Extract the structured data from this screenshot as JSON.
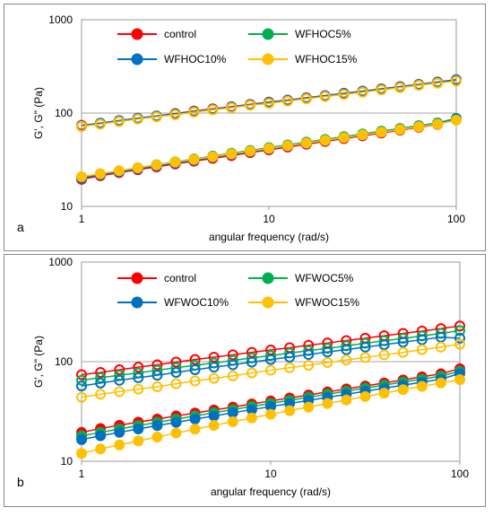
{
  "chart_data": [
    {
      "type": "scatter",
      "panel_label": "a",
      "xlabel": "angular frequency (rad/s)",
      "ylabel": "G', G\" (Pa)",
      "xscale": "log",
      "yscale": "log",
      "xlim": [
        1,
        100
      ],
      "ylim": [
        10,
        1000
      ],
      "xticks": [
        "1",
        "10",
        "100"
      ],
      "yticks": [
        "10",
        "100",
        "1000"
      ],
      "gridlines": "horizontal",
      "legend_position": "top",
      "x": [
        1,
        1.259,
        1.585,
        1.995,
        2.512,
        3.162,
        3.981,
        5.012,
        6.31,
        7.943,
        10,
        12.59,
        15.85,
        19.95,
        25.12,
        31.62,
        39.81,
        50.12,
        63.1,
        79.43,
        100
      ],
      "series": [
        {
          "name": "control",
          "color": "#ff0000",
          "G_prime": [
            74,
            78,
            83,
            88,
            93,
            99,
            105,
            111,
            117,
            124,
            131,
            138,
            146,
            154,
            163,
            172,
            182,
            192,
            203,
            215,
            228
          ],
          "G_double": [
            19.5,
            21.3,
            23.0,
            24.7,
            26.5,
            28.5,
            30.5,
            32.7,
            35.0,
            37.6,
            40.3,
            43.2,
            46.3,
            49.6,
            53.2,
            57.0,
            61.1,
            65.6,
            70.4,
            75.6,
            85
          ]
        },
        {
          "name": "WFHOC5%",
          "color": "#00b050",
          "G_prime": [
            72,
            77,
            82,
            87,
            92,
            97,
            103,
            109,
            115,
            122,
            129,
            136,
            144,
            152,
            161,
            170,
            180,
            190,
            201,
            213,
            225
          ],
          "G_double": [
            20.5,
            22.3,
            24.0,
            25.9,
            27.9,
            30.0,
            32.2,
            34.6,
            37.1,
            39.8,
            42.6,
            45.6,
            48.8,
            52.2,
            55.9,
            59.8,
            64.0,
            68.5,
            73.3,
            78.5,
            88
          ]
        },
        {
          "name": "WFHOC10%",
          "color": "#0070c0",
          "G_prime": [
            73,
            78,
            83,
            88,
            93,
            98,
            104,
            110,
            116,
            123,
            130,
            137,
            145,
            153,
            162,
            171,
            181,
            191,
            202,
            214,
            227
          ],
          "G_double": [
            20.0,
            21.8,
            23.5,
            25.3,
            27.2,
            29.2,
            31.3,
            33.6,
            36.0,
            38.6,
            41.4,
            44.3,
            47.5,
            50.8,
            54.4,
            58.2,
            62.4,
            66.8,
            71.6,
            76.7,
            86
          ]
        },
        {
          "name": "WFHOC15%",
          "color": "#ffc000",
          "G_prime": [
            72,
            76,
            81,
            86,
            91,
            96,
            102,
            108,
            114,
            121,
            127,
            134,
            142,
            150,
            158,
            167,
            177,
            187,
            198,
            209,
            220
          ],
          "G_double": [
            20.8,
            22.4,
            24.1,
            25.9,
            27.8,
            29.8,
            31.9,
            34.1,
            36.5,
            39.1,
            41.8,
            44.7,
            47.8,
            51.1,
            54.6,
            58.4,
            62.4,
            66.7,
            71.3,
            76.2,
            84
          ]
        }
      ]
    },
    {
      "type": "scatter",
      "panel_label": "b",
      "xlabel": "angular frequency (rad/s)",
      "ylabel": "G', G\" (Pa)",
      "xscale": "log",
      "yscale": "log",
      "xlim": [
        1,
        100
      ],
      "ylim": [
        10,
        1000
      ],
      "xticks": [
        "1",
        "10",
        "100"
      ],
      "yticks": [
        "10",
        "100",
        "1000"
      ],
      "gridlines": "horizontal",
      "legend_position": "top",
      "x": [
        1,
        1.259,
        1.585,
        1.995,
        2.512,
        3.162,
        3.981,
        5.012,
        6.31,
        7.943,
        10,
        12.59,
        15.85,
        19.95,
        25.12,
        31.62,
        39.81,
        50.12,
        63.1,
        79.43,
        100
      ],
      "series": [
        {
          "name": "control",
          "color": "#ff0000",
          "G_prime": [
            74,
            78,
            83,
            88,
            93,
            99,
            105,
            111,
            117,
            124,
            131,
            138,
            146,
            154,
            163,
            172,
            182,
            192,
            203,
            215,
            228
          ],
          "G_double": [
            19.5,
            21.3,
            23.0,
            24.7,
            26.5,
            28.5,
            30.5,
            32.7,
            35.0,
            37.6,
            40.3,
            43.2,
            46.3,
            49.6,
            53.2,
            57.0,
            61.1,
            65.6,
            70.4,
            75.6,
            85
          ]
        },
        {
          "name": "WFWOC5%",
          "color": "#00b050",
          "G_prime": [
            65,
            69,
            73,
            77,
            82,
            87,
            92,
            97,
            103,
            109,
            115,
            122,
            129,
            136,
            144,
            153,
            162,
            171,
            181,
            192,
            205
          ],
          "G_double": [
            18.0,
            19.5,
            21.1,
            22.8,
            24.6,
            26.5,
            28.5,
            30.7,
            33.0,
            35.5,
            38.1,
            40.9,
            43.9,
            47.1,
            50.5,
            54.2,
            58.1,
            62.3,
            66.8,
            71.6,
            80
          ]
        },
        {
          "name": "WFWOC10%",
          "color": "#0070c0",
          "G_prime": [
            57,
            61,
            65,
            69,
            73,
            78,
            83,
            88,
            93,
            99,
            105,
            111,
            118,
            125,
            132,
            140,
            148,
            157,
            166,
            176,
            172
          ],
          "G_double": [
            16.5,
            18.0,
            19.5,
            21.1,
            22.8,
            24.6,
            26.5,
            28.5,
            30.7,
            33.0,
            35.4,
            38.0,
            40.8,
            43.8,
            47.0,
            50.4,
            54.1,
            58.0,
            62.2,
            66.7,
            76
          ]
        },
        {
          "name": "WFWOC15%",
          "color": "#ffc000",
          "G_prime": [
            44,
            47,
            50,
            53,
            56,
            60,
            64,
            68,
            72,
            77,
            82,
            87,
            92,
            98,
            104,
            110,
            117,
            124,
            132,
            140,
            150
          ],
          "G_double": [
            12.0,
            13.3,
            14.6,
            16.0,
            17.5,
            19.2,
            21.0,
            22.9,
            25.0,
            27.2,
            29.6,
            32.2,
            35.0,
            38.0,
            41.2,
            44.6,
            48.3,
            52.3,
            56.5,
            61.1,
            66
          ]
        }
      ]
    }
  ]
}
